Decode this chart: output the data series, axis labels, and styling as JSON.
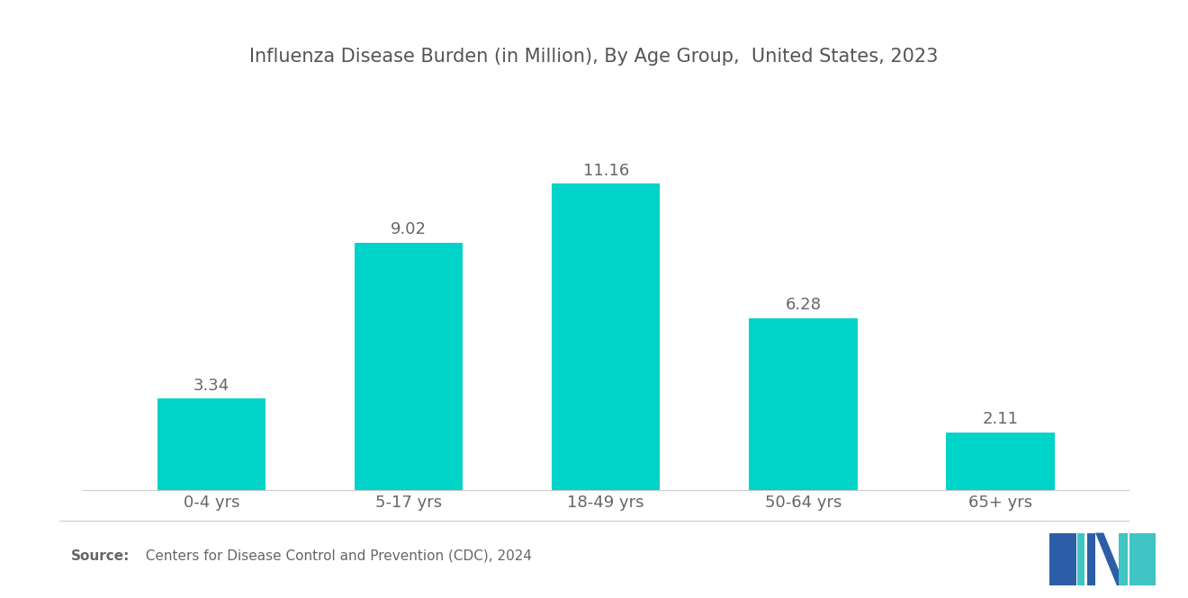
{
  "title": "Influenza Disease Burden (in Million), By Age Group,  United States, 2023",
  "categories": [
    "0-4 yrs",
    "5-17 yrs",
    "18-49 yrs",
    "50-64 yrs",
    "65+ yrs"
  ],
  "values": [
    3.34,
    9.02,
    11.16,
    6.28,
    2.11
  ],
  "bar_color": "#00D4C8",
  "background_color": "#ffffff",
  "label_color": "#666666",
  "title_color": "#555555",
  "source_label_bold": "Source:",
  "source_text_rest": "  Centers for Disease Control and Prevention (CDC), 2024",
  "title_fontsize": 15,
  "value_fontsize": 13,
  "tick_fontsize": 13,
  "source_fontsize": 11,
  "bar_width": 0.55,
  "ylim": [
    0,
    13.5
  ],
  "logo_navy": "#2B5EA7",
  "logo_teal": "#40C4C4"
}
